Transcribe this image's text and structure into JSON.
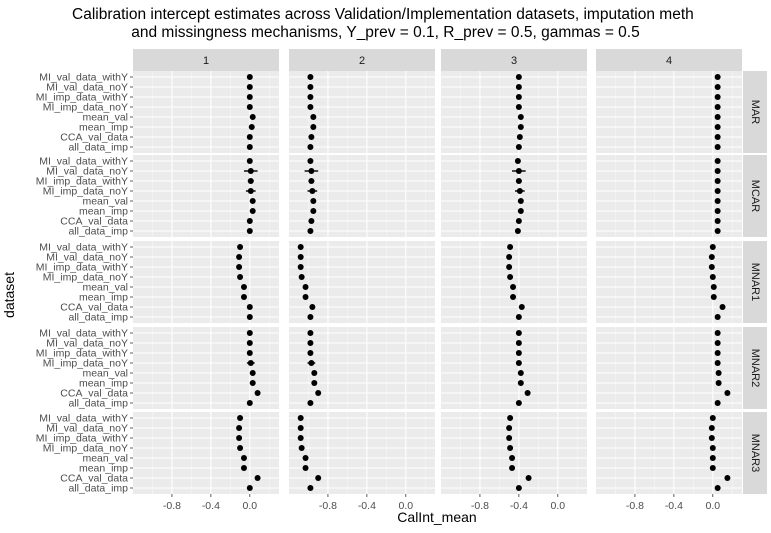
{
  "chart_data": {
    "type": "scatter",
    "title_lines": [
      "Calibration intercept estimates across Validation/Implementation datasets, imputation meth",
      "and missingness mechanisms, Y_prev = 0.1, R_prev = 0.5, gammas = 0.5"
    ],
    "xlabel": "CalInt_mean",
    "ylabel": "dataset",
    "xlim": [
      -1.2,
      0.3
    ],
    "x_ticks": [
      -0.8,
      -0.4,
      0.0
    ],
    "x_tick_labels": [
      "-0.8",
      "-0.4",
      "0.0"
    ],
    "columns": [
      "1",
      "2",
      "3",
      "4"
    ],
    "rows": [
      "MAR",
      "MCAR",
      "MNAR1",
      "MNAR2",
      "MNAR3"
    ],
    "categories": [
      "MI_val_data_withY",
      "MI_val_data_noY",
      "MI_imp_data_withY",
      "MI_imp_data_noY",
      "mean_val",
      "mean_imp",
      "CCA_val_data",
      "all_data_imp"
    ],
    "background": "#ebebeb",
    "strip_color": "#d9d9d9",
    "point_color": "#000000",
    "panels": [
      {
        "row": "MAR",
        "col": "1",
        "values": [
          0.0,
          0.0,
          0.0,
          0.0,
          0.03,
          0.02,
          0.0,
          0.0
        ],
        "err": [
          0.02,
          0.02,
          0.02,
          0.02,
          0.02,
          0.02,
          0.02,
          0.02
        ]
      },
      {
        "row": "MAR",
        "col": "2",
        "values": [
          -0.98,
          -0.98,
          -0.98,
          -0.98,
          -0.95,
          -0.95,
          -0.97,
          -0.98
        ],
        "err": [
          0.02,
          0.02,
          0.02,
          0.02,
          0.02,
          0.02,
          0.02,
          0.02
        ]
      },
      {
        "row": "MAR",
        "col": "3",
        "values": [
          -0.4,
          -0.4,
          -0.4,
          -0.4,
          -0.38,
          -0.38,
          -0.39,
          -0.4
        ],
        "err": [
          0.02,
          0.02,
          0.02,
          0.02,
          0.02,
          0.02,
          0.02,
          0.02
        ]
      },
      {
        "row": "MAR",
        "col": "4",
        "values": [
          0.05,
          0.05,
          0.05,
          0.05,
          0.05,
          0.05,
          0.05,
          0.05
        ],
        "err": [
          0.02,
          0.02,
          0.02,
          0.02,
          0.02,
          0.02,
          0.02,
          0.02
        ]
      },
      {
        "row": "MCAR",
        "col": "1",
        "values": [
          0.0,
          0.01,
          0.01,
          0.01,
          0.03,
          0.03,
          0.0,
          0.0
        ],
        "err": [
          0.02,
          0.07,
          0.03,
          0.05,
          0.02,
          0.02,
          0.02,
          0.02
        ]
      },
      {
        "row": "MCAR",
        "col": "2",
        "values": [
          -0.98,
          -0.97,
          -0.97,
          -0.96,
          -0.95,
          -0.95,
          -0.97,
          -0.98
        ],
        "err": [
          0.02,
          0.07,
          0.03,
          0.05,
          0.02,
          0.02,
          0.02,
          0.02
        ]
      },
      {
        "row": "MCAR",
        "col": "3",
        "values": [
          -0.41,
          -0.4,
          -0.4,
          -0.39,
          -0.38,
          -0.38,
          -0.4,
          -0.41
        ],
        "err": [
          0.02,
          0.07,
          0.03,
          0.05,
          0.02,
          0.02,
          0.02,
          0.02
        ]
      },
      {
        "row": "MCAR",
        "col": "4",
        "values": [
          0.05,
          0.05,
          0.05,
          0.05,
          0.05,
          0.05,
          0.05,
          0.05
        ],
        "err": [
          0.02,
          0.02,
          0.02,
          0.02,
          0.02,
          0.02,
          0.02,
          0.02
        ]
      },
      {
        "row": "MNAR1",
        "col": "1",
        "values": [
          -0.1,
          -0.11,
          -0.11,
          -0.1,
          -0.06,
          -0.06,
          0.0,
          0.0
        ],
        "err": [
          0.02,
          0.02,
          0.02,
          0.02,
          0.02,
          0.02,
          0.02,
          0.02
        ]
      },
      {
        "row": "MNAR1",
        "col": "2",
        "values": [
          -1.08,
          -1.08,
          -1.08,
          -1.07,
          -1.03,
          -1.03,
          -0.96,
          -0.98
        ],
        "err": [
          0.02,
          0.02,
          0.02,
          0.02,
          0.02,
          0.02,
          0.02,
          0.02
        ]
      },
      {
        "row": "MNAR1",
        "col": "3",
        "values": [
          -0.49,
          -0.5,
          -0.5,
          -0.49,
          -0.46,
          -0.46,
          -0.37,
          -0.4
        ],
        "err": [
          0.02,
          0.02,
          0.02,
          0.02,
          0.02,
          0.02,
          0.02,
          0.02
        ]
      },
      {
        "row": "MNAR1",
        "col": "4",
        "values": [
          0.0,
          -0.01,
          -0.01,
          0.0,
          0.01,
          0.01,
          0.1,
          0.05
        ],
        "err": [
          0.02,
          0.02,
          0.02,
          0.02,
          0.02,
          0.02,
          0.02,
          0.02
        ]
      },
      {
        "row": "MNAR2",
        "col": "1",
        "values": [
          0.0,
          0.0,
          0.0,
          0.01,
          0.03,
          0.03,
          0.08,
          0.0
        ],
        "err": [
          0.02,
          0.02,
          0.02,
          0.04,
          0.02,
          0.02,
          0.02,
          0.02
        ]
      },
      {
        "row": "MNAR2",
        "col": "2",
        "values": [
          -0.98,
          -0.98,
          -0.98,
          -0.97,
          -0.94,
          -0.94,
          -0.9,
          -0.98
        ],
        "err": [
          0.02,
          0.02,
          0.02,
          0.04,
          0.02,
          0.02,
          0.02,
          0.02
        ]
      },
      {
        "row": "MNAR2",
        "col": "3",
        "values": [
          -0.4,
          -0.4,
          -0.4,
          -0.4,
          -0.38,
          -0.38,
          -0.31,
          -0.4
        ],
        "err": [
          0.02,
          0.02,
          0.02,
          0.02,
          0.02,
          0.02,
          0.02,
          0.02
        ]
      },
      {
        "row": "MNAR2",
        "col": "4",
        "values": [
          0.05,
          0.05,
          0.05,
          0.05,
          0.06,
          0.06,
          0.15,
          0.05
        ],
        "err": [
          0.02,
          0.02,
          0.02,
          0.02,
          0.02,
          0.02,
          0.02,
          0.02
        ]
      },
      {
        "row": "MNAR3",
        "col": "1",
        "values": [
          -0.1,
          -0.11,
          -0.11,
          -0.1,
          -0.06,
          -0.06,
          0.08,
          0.0
        ],
        "err": [
          0.02,
          0.02,
          0.02,
          0.02,
          0.02,
          0.02,
          0.02,
          0.02
        ]
      },
      {
        "row": "MNAR3",
        "col": "2",
        "values": [
          -1.08,
          -1.08,
          -1.08,
          -1.07,
          -1.03,
          -1.03,
          -0.9,
          -0.98
        ],
        "err": [
          0.02,
          0.02,
          0.02,
          0.02,
          0.02,
          0.02,
          0.02,
          0.02
        ]
      },
      {
        "row": "MNAR3",
        "col": "3",
        "values": [
          -0.49,
          -0.5,
          -0.5,
          -0.49,
          -0.47,
          -0.47,
          -0.3,
          -0.4
        ],
        "err": [
          0.02,
          0.02,
          0.02,
          0.02,
          0.02,
          0.02,
          0.02,
          0.02
        ]
      },
      {
        "row": "MNAR3",
        "col": "4",
        "values": [
          0.0,
          -0.01,
          -0.01,
          0.0,
          0.0,
          0.0,
          0.15,
          0.05
        ],
        "err": [
          0.02,
          0.02,
          0.02,
          0.02,
          0.02,
          0.02,
          0.02,
          0.02
        ]
      }
    ]
  }
}
